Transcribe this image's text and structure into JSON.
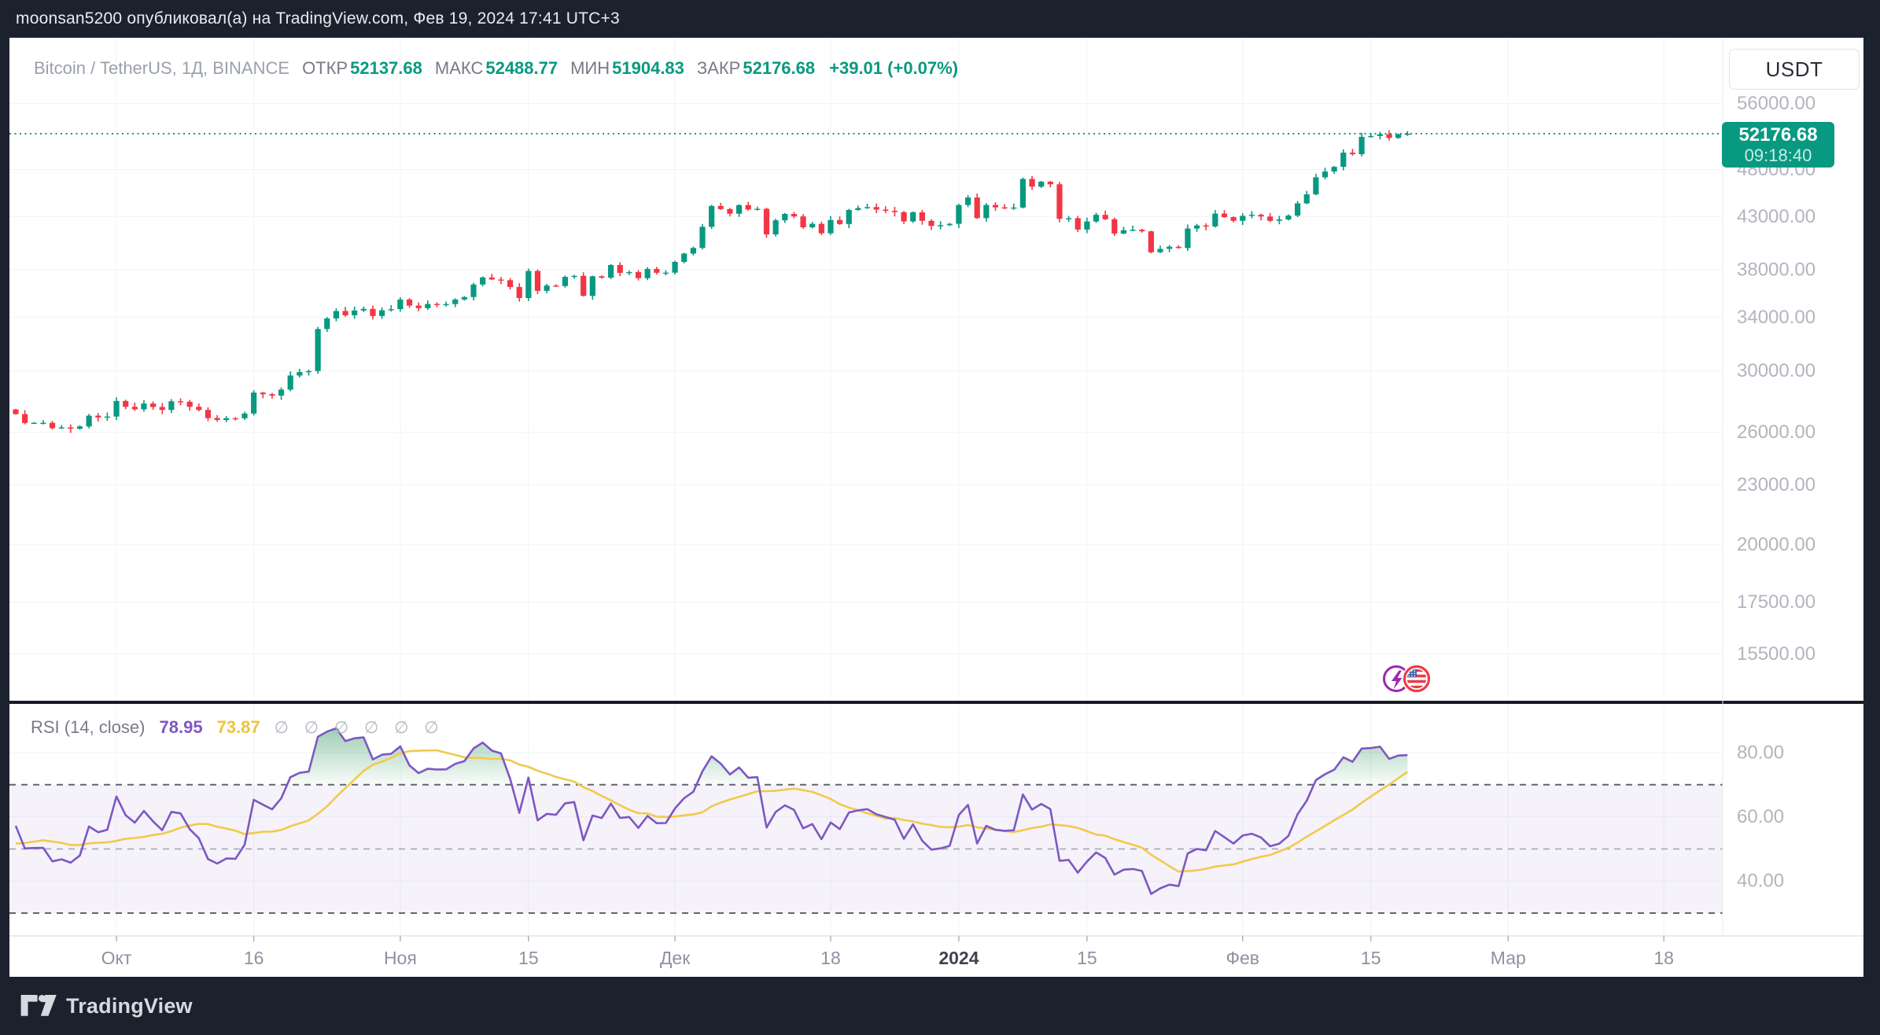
{
  "top_bar": {
    "text": "moonsan5200 опубликовал(а) на TradingView.com, Фев 19, 2024 17:41 UTC+3"
  },
  "header": {
    "symbol": "Bitcoin / TetherUS, 1Д, BINANCE",
    "fields": [
      {
        "label": "ОТКР",
        "value": "52137.68"
      },
      {
        "label": "МАКС",
        "value": "52488.77"
      },
      {
        "label": "МИН",
        "value": "51904.83"
      },
      {
        "label": "ЗАКР",
        "value": "52176.68"
      }
    ],
    "change": "+39.01 (+0.07%)"
  },
  "price_axis": {
    "currency_button": "USDT",
    "last_price_label": "52176.68",
    "countdown": "09:18:40"
  },
  "rsi": {
    "title": "RSI (14, close)",
    "value": "78.95",
    "ma_value": "73.87",
    "hidden_values": "∅ ∅ ∅ ∅ ∅ ∅",
    "ticks": [
      "80.00",
      "60.00",
      "40.00"
    ]
  },
  "footer": {
    "logo_text": "TradingView"
  },
  "colors": {
    "up_green": "#089981",
    "down_red": "#f23645",
    "rsi_purple": "#7e57c2",
    "rsi_ma_yellow": "#f2c94c",
    "band_fill": "rgba(126,87,194,0.08)",
    "frame_bg": "#1c212e",
    "grid": "#f0f3fa"
  },
  "chart_data": {
    "type": "candlestick",
    "symbol": "BTCUSDT",
    "interval": "1D",
    "scale": "log",
    "title": "Bitcoin / TetherUS, 1Д, BINANCE",
    "last_price": 52176.68,
    "countdown": "09:18:40",
    "last_candle": {
      "open": 52137.68,
      "high": 52488.77,
      "low": 51904.83,
      "close": 52176.68
    },
    "price_ticks": [
      {
        "label": "56000.00",
        "value": 56000
      },
      {
        "label": "48000.00",
        "value": 48000
      },
      {
        "label": "43000.00",
        "value": 43000
      },
      {
        "label": "38000.00",
        "value": 38000
      },
      {
        "label": "34000.00",
        "value": 34000
      },
      {
        "label": "30000.00",
        "value": 30000
      },
      {
        "label": "26000.00",
        "value": 26000
      },
      {
        "label": "23000.00",
        "value": 23000
      },
      {
        "label": "20000.00",
        "value": 20000
      },
      {
        "label": "17500.00",
        "value": 17500
      },
      {
        "label": "15500.00",
        "value": 15500
      }
    ],
    "time_ticks": [
      {
        "label": "Окт",
        "index": 11,
        "bold": false
      },
      {
        "label": "16",
        "index": 26,
        "bold": false
      },
      {
        "label": "Ноя",
        "index": 42,
        "bold": false
      },
      {
        "label": "15",
        "index": 56,
        "bold": false
      },
      {
        "label": "Дек",
        "index": 72,
        "bold": false
      },
      {
        "label": "18",
        "index": 89,
        "bold": false
      },
      {
        "label": "2024",
        "index": 103,
        "bold": true
      },
      {
        "label": "15",
        "index": 117,
        "bold": false
      },
      {
        "label": "Фев",
        "index": 134,
        "bold": false
      },
      {
        "label": "15",
        "index": 148,
        "bold": false
      },
      {
        "label": "Мар",
        "index": 163,
        "bold": false
      },
      {
        "label": "18",
        "index": 180,
        "bold": false
      }
    ],
    "closes": [
      27125,
      26567,
      26579,
      26580,
      26250,
      26295,
      26215,
      26355,
      27025,
      26910,
      26970,
      27970,
      27590,
      27430,
      27800,
      27580,
      27390,
      27950,
      27920,
      27590,
      27390,
      26875,
      26755,
      26865,
      26860,
      27160,
      28520,
      28415,
      28320,
      28720,
      29680,
      29920,
      29990,
      33080,
      33910,
      34500,
      34160,
      34540,
      34670,
      34100,
      34560,
      34650,
      35440,
      34940,
      34730,
      35070,
      35050,
      35060,
      35440,
      35640,
      36700,
      37310,
      37130,
      37070,
      36490,
      35560,
      37880,
      36160,
      36610,
      36570,
      37360,
      37450,
      35740,
      37410,
      37290,
      38410,
      37710,
      37780,
      37250,
      38060,
      37720,
      37730,
      38690,
      39450,
      39970,
      41990,
      44080,
      43760,
      43290,
      44170,
      43720,
      43790,
      41250,
      42630,
      43270,
      43020,
      41940,
      42280,
      41360,
      42660,
      42260,
      43670,
      43860,
      43970,
      43710,
      43580,
      43450,
      42520,
      43440,
      42580,
      42080,
      42150,
      42280,
      44180,
      44960,
      42850,
      44180,
      43940,
      43880,
      43920,
      46950,
      46110,
      46650,
      46370,
      42780,
      42840,
      41720,
      42510,
      43180,
      42740,
      41330,
      41660,
      41700,
      41550,
      39570,
      39880,
      40080,
      39960,
      41820,
      42120,
      42030,
      43300,
      42950,
      42580,
      43080,
      43190,
      43010,
      42580,
      42710,
      43100,
      44350,
      45290,
      47130,
      47770,
      48290,
      49920,
      49740,
      51800,
      51900,
      52120,
      51660,
      52120,
      52176.68
    ],
    "rsi_warmup_closes": [
      26430,
      26100,
      26050,
      26010,
      26100,
      27300,
      27270,
      25930,
      25800,
      25870,
      25970,
      26130,
      25750,
      25840,
      26250,
      26240,
      25900,
      25910,
      26530,
      26540,
      26760,
      26220,
      26340,
      26570,
      26750,
      27210,
      26570,
      26890
    ],
    "rsi_period": 14,
    "rsi_ma_period": 14,
    "rsi_levels": {
      "upper": 70,
      "middle": 50,
      "lower": 30
    },
    "rsi_ticks": [
      {
        "label": "80.00",
        "value": 80
      },
      {
        "label": "60.00",
        "value": 60
      },
      {
        "label": "40.00",
        "value": 40
      }
    ]
  }
}
